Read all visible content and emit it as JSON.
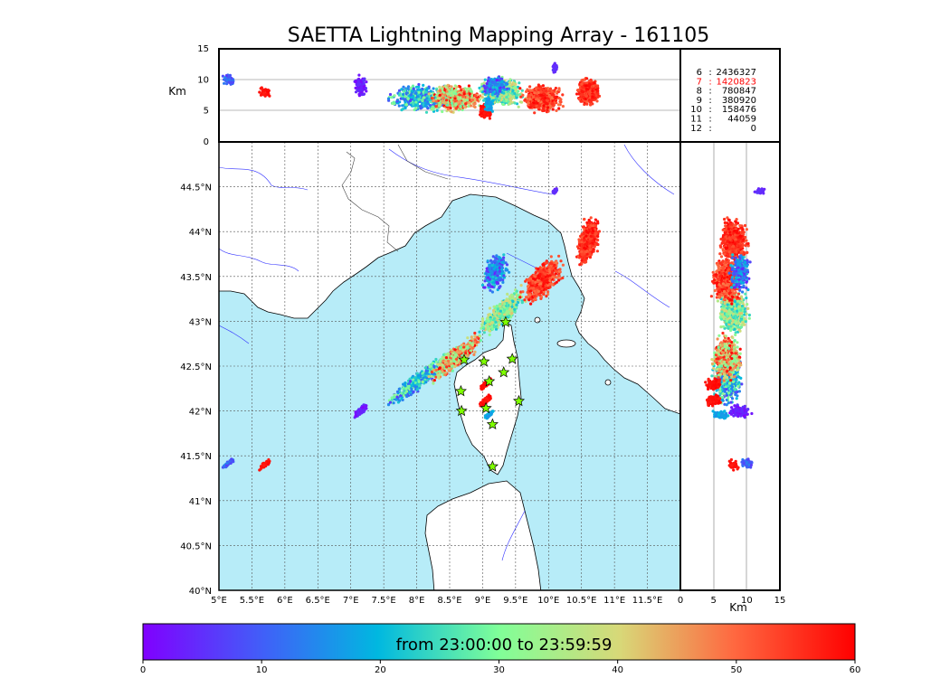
{
  "chart_data": {
    "type": "scatter",
    "title": "SAETTA Lightning Mapping Array - 161105",
    "time_range_label": "from 23:00:00 to 23:59:59",
    "colormap": "rainbow",
    "map": {
      "xlim": [
        5,
        12
      ],
      "ylim": [
        40,
        45
      ],
      "x_ticks": [
        "5°E",
        "5.5°E",
        "6°E",
        "6.5°E",
        "7°E",
        "7.5°E",
        "8°E",
        "8.5°E",
        "9°E",
        "9.5°E",
        "10°E",
        "10.5°E",
        "11°E",
        "11.5°E"
      ],
      "y_ticks": [
        "40°N",
        "40.5°N",
        "41°N",
        "41.5°N",
        "42°N",
        "42.5°N",
        "43°N",
        "43.5°N",
        "44°N",
        "44.5°N"
      ],
      "grid": true,
      "sea_color": "#b7ecf8",
      "land_color": "#ffffff"
    },
    "altitude_lon_panel": {
      "ylabel": "Km",
      "ylim": [
        0,
        15
      ],
      "y_ticks": [
        "0",
        "5",
        "10",
        "15"
      ]
    },
    "altitude_lat_panel": {
      "xlabel": "Km",
      "xlim": [
        0,
        15
      ],
      "x_ticks": [
        "0",
        "5",
        "10",
        "15"
      ]
    },
    "station_counts": [
      {
        "stations": "6",
        "count": "2436327",
        "color": "#000000"
      },
      {
        "stations": "7",
        "count": "1420823",
        "color": "#ff0000"
      },
      {
        "stations": "8",
        "count": "780847",
        "color": "#000000"
      },
      {
        "stations": "9",
        "count": "380920",
        "color": "#000000"
      },
      {
        "stations": "10",
        "count": "158476",
        "color": "#000000"
      },
      {
        "stations": "11",
        "count": "44059",
        "color": "#000000"
      },
      {
        "stations": "12",
        "count": "0",
        "color": "#000000"
      }
    ],
    "colorbar": {
      "range": [
        0,
        60
      ],
      "ticks": [
        "0",
        "10",
        "20",
        "30",
        "40",
        "50",
        "60"
      ]
    },
    "stations": [
      {
        "lon": 9.35,
        "lat": 42.99
      },
      {
        "lon": 8.72,
        "lat": 42.57
      },
      {
        "lon": 9.02,
        "lat": 42.55
      },
      {
        "lon": 9.45,
        "lat": 42.58
      },
      {
        "lon": 9.32,
        "lat": 42.43
      },
      {
        "lon": 9.1,
        "lat": 42.33
      },
      {
        "lon": 8.67,
        "lat": 42.22
      },
      {
        "lon": 9.55,
        "lat": 42.11
      },
      {
        "lon": 8.68,
        "lat": 42.0
      },
      {
        "lon": 9.05,
        "lat": 42.03
      },
      {
        "lon": 9.15,
        "lat": 41.85
      },
      {
        "lon": 9.15,
        "lat": 41.38
      }
    ]
  }
}
